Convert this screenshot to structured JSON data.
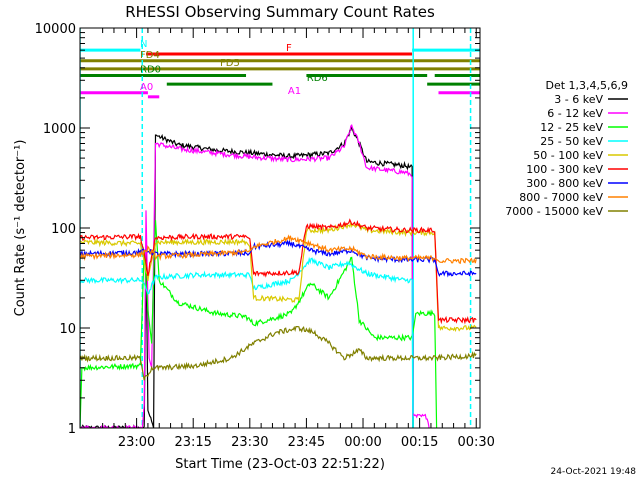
{
  "chart_data": {
    "type": "line",
    "title": "RHESSI Observing Summary Count Rates",
    "xlabel": "Start Time (23-Oct-03 22:51:22)",
    "ylabel": "Count Rate (s⁻¹ detector⁻¹)",
    "y_scale": "log",
    "ylim": [
      1,
      10000
    ],
    "xlim_minutes": [
      -6,
      100
    ],
    "x_ticks": [
      {
        "t": 9,
        "label": "23:00"
      },
      {
        "t": 24,
        "label": "23:15"
      },
      {
        "t": 39,
        "label": "23:30"
      },
      {
        "t": 54,
        "label": "23:45"
      },
      {
        "t": 69,
        "label": "00:00"
      },
      {
        "t": 84,
        "label": "00:15"
      },
      {
        "t": 99,
        "label": "00:30"
      }
    ],
    "y_ticks": [
      {
        "v": 1,
        "label": "1"
      },
      {
        "v": 10,
        "label": "10"
      },
      {
        "v": 100,
        "label": "100"
      },
      {
        "v": 1000,
        "label": "1000"
      },
      {
        "v": 10000,
        "label": "10000"
      }
    ],
    "legend_title": "Det 1,3,4,5,6,9",
    "legend_position": "right",
    "series": [
      {
        "name": "3 - 6 keV",
        "color": "#000000",
        "points": [
          [
            -6,
            1
          ],
          [
            11,
            1
          ],
          [
            11.5,
            60
          ],
          [
            12,
            1.5
          ],
          [
            13.5,
            1
          ],
          [
            14,
            850
          ],
          [
            20,
            680
          ],
          [
            30,
            600
          ],
          [
            40,
            560
          ],
          [
            50,
            520
          ],
          [
            60,
            560
          ],
          [
            64,
            700
          ],
          [
            66,
            1000
          ],
          [
            68,
            700
          ],
          [
            70,
            460
          ],
          [
            80,
            420
          ],
          [
            82,
            400
          ],
          [
            82.2,
            1
          ]
        ]
      },
      {
        "name": "6 - 12 keV",
        "color": "#ff00ff",
        "points": [
          [
            -6,
            1
          ],
          [
            10.5,
            1
          ],
          [
            11,
            1.7
          ],
          [
            11.5,
            150
          ],
          [
            12.3,
            5
          ],
          [
            13,
            4
          ],
          [
            14,
            700
          ],
          [
            20,
            620
          ],
          [
            30,
            560
          ],
          [
            40,
            510
          ],
          [
            50,
            480
          ],
          [
            60,
            500
          ],
          [
            64,
            650
          ],
          [
            66,
            1050
          ],
          [
            68,
            700
          ],
          [
            70,
            400
          ],
          [
            80,
            360
          ],
          [
            82,
            340
          ],
          [
            82.2,
            1.3
          ],
          [
            86,
            1.3
          ],
          [
            86.5,
            1
          ]
        ]
      },
      {
        "name": "12 - 25 keV",
        "color": "#00ff00",
        "points": [
          [
            -6,
            1
          ],
          [
            -5.5,
            4
          ],
          [
            10,
            4.2
          ],
          [
            11,
            60
          ],
          [
            12,
            15
          ],
          [
            13,
            7
          ],
          [
            14,
            120
          ],
          [
            15,
            30
          ],
          [
            20,
            18
          ],
          [
            30,
            14
          ],
          [
            38,
            13
          ],
          [
            40,
            11
          ],
          [
            50,
            14
          ],
          [
            55,
            28
          ],
          [
            60,
            20
          ],
          [
            66,
            50
          ],
          [
            68,
            12
          ],
          [
            72,
            8
          ],
          [
            82,
            8
          ],
          [
            83,
            14
          ],
          [
            88,
            14
          ],
          [
            88.5,
            1
          ]
        ]
      },
      {
        "name": "25 - 50 keV",
        "color": "#00ffff",
        "points": [
          [
            -6,
            30
          ],
          [
            10,
            30
          ],
          [
            11,
            28
          ],
          [
            12,
            22
          ],
          [
            14,
            32
          ],
          [
            25,
            34
          ],
          [
            39,
            34
          ],
          [
            40,
            25
          ],
          [
            50,
            30
          ],
          [
            55,
            48
          ],
          [
            60,
            40
          ],
          [
            65,
            45
          ],
          [
            70,
            35
          ],
          [
            80,
            30
          ],
          [
            82,
            30
          ],
          [
            82.2,
            1
          ]
        ]
      },
      {
        "name": "50 - 100 keV",
        "color": "#d9c900",
        "points": [
          [
            -6,
            72
          ],
          [
            10,
            70
          ],
          [
            12,
            30
          ],
          [
            14,
            72
          ],
          [
            25,
            72
          ],
          [
            38,
            73
          ],
          [
            39,
            65
          ],
          [
            40,
            20
          ],
          [
            52,
            19
          ],
          [
            54,
            95
          ],
          [
            60,
            95
          ],
          [
            66,
            110
          ],
          [
            70,
            95
          ],
          [
            80,
            90
          ],
          [
            88,
            90
          ],
          [
            89,
            10
          ],
          [
            99,
            10
          ]
        ]
      },
      {
        "name": "100 - 300 keV",
        "color": "#ff0000",
        "points": [
          [
            -6,
            80
          ],
          [
            10,
            82
          ],
          [
            12,
            35
          ],
          [
            14,
            80
          ],
          [
            25,
            82
          ],
          [
            38,
            82
          ],
          [
            39,
            78
          ],
          [
            40,
            35
          ],
          [
            52,
            36
          ],
          [
            54,
            105
          ],
          [
            60,
            100
          ],
          [
            66,
            115
          ],
          [
            70,
            100
          ],
          [
            80,
            95
          ],
          [
            88,
            95
          ],
          [
            89,
            12
          ],
          [
            99,
            12
          ]
        ]
      },
      {
        "name": "300 - 800 keV",
        "color": "#0000ff",
        "points": [
          [
            -6,
            55
          ],
          [
            10,
            57
          ],
          [
            12,
            60
          ],
          [
            14,
            55
          ],
          [
            25,
            55
          ],
          [
            39,
            56
          ],
          [
            40,
            65
          ],
          [
            50,
            70
          ],
          [
            55,
            60
          ],
          [
            60,
            55
          ],
          [
            66,
            60
          ],
          [
            70,
            50
          ],
          [
            80,
            48
          ],
          [
            88,
            48
          ],
          [
            89,
            35
          ],
          [
            99,
            35
          ]
        ]
      },
      {
        "name": "800 - 7000 keV",
        "color": "#ff8000",
        "points": [
          [
            -6,
            52
          ],
          [
            10,
            54
          ],
          [
            12,
            62
          ],
          [
            14,
            52
          ],
          [
            25,
            54
          ],
          [
            39,
            58
          ],
          [
            40,
            65
          ],
          [
            50,
            80
          ],
          [
            55,
            70
          ],
          [
            60,
            60
          ],
          [
            66,
            62
          ],
          [
            70,
            52
          ],
          [
            80,
            50
          ],
          [
            88,
            50
          ],
          [
            89,
            47
          ],
          [
            99,
            47
          ]
        ]
      },
      {
        "name": "7000 - 15000 keV",
        "color": "#808000",
        "points": [
          [
            -6,
            5
          ],
          [
            10,
            5
          ],
          [
            11,
            3
          ],
          [
            13,
            4
          ],
          [
            16,
            4
          ],
          [
            25,
            4.2
          ],
          [
            34,
            5
          ],
          [
            40,
            7
          ],
          [
            46,
            9
          ],
          [
            52,
            10
          ],
          [
            56,
            9
          ],
          [
            60,
            7
          ],
          [
            64,
            5
          ],
          [
            66,
            5.5
          ],
          [
            68,
            6
          ],
          [
            70,
            5
          ],
          [
            80,
            5
          ],
          [
            88,
            5
          ],
          [
            99,
            5.3
          ]
        ]
      }
    ],
    "state_bars": [
      {
        "label": "N",
        "color": "#00ffff",
        "segments": [
          [
            -6,
            10
          ],
          [
            82,
            100
          ]
        ],
        "y": 6000
      },
      {
        "label": "F",
        "color": "#ff0000",
        "segments": [
          [
            11.5,
            82
          ]
        ],
        "y": 5500
      },
      {
        "label": "FD4",
        "color": "#808000",
        "segments": [
          [
            -6,
            100
          ]
        ],
        "y": 4700
      },
      {
        "label": "FD5",
        "color": "#808000",
        "segments": [
          [
            -6,
            100
          ]
        ],
        "y": 3900
      },
      {
        "label": "RD0",
        "color": "#008000",
        "segments": [
          [
            -6,
            38
          ],
          [
            54,
            86
          ],
          [
            88,
            100
          ]
        ],
        "y": 3350
      },
      {
        "label": "RD6",
        "color": "#008000",
        "segments": [
          [
            17,
            45
          ],
          [
            86,
            100
          ]
        ],
        "y": 2750
      },
      {
        "label": "A0",
        "color": "#ff00ff",
        "segments": [
          [
            -6,
            12
          ],
          [
            89,
            100
          ]
        ],
        "y": 2250
      },
      {
        "label": "A1",
        "color": "#ff00ff",
        "segments": [
          [
            12,
            15
          ]
        ],
        "y": 2050
      }
    ],
    "vertical_markers": [
      {
        "t": -6,
        "color": "#00ffff"
      },
      {
        "t": 10.5,
        "color": "#00ffff",
        "dashed": true
      },
      {
        "t": 82.3,
        "color": "#00ffff"
      },
      {
        "t": 97.5,
        "color": "#00ffff",
        "dashed": true
      }
    ]
  },
  "footer": {
    "timestamp": "24-Oct-2021 19:48"
  }
}
